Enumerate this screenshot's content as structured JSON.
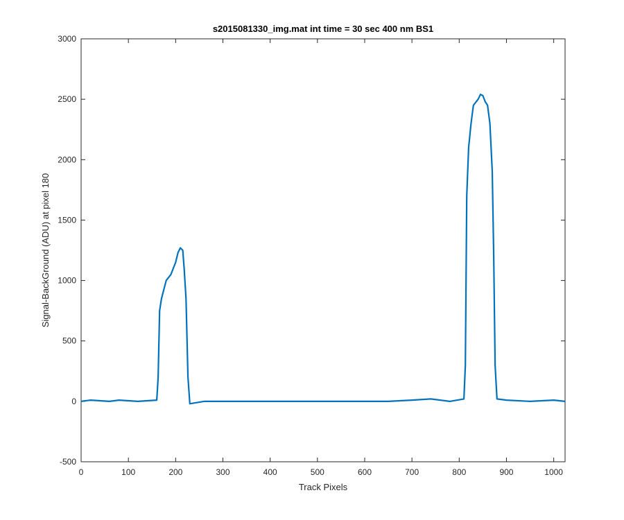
{
  "chart_data": {
    "type": "line",
    "title": "s2015081330_img.mat int time = 30 sec  400 nm BS1",
    "xlabel": "Track Pixels",
    "ylabel": "Signal-BackGround (ADU) at pixel 180",
    "xlim": [
      0,
      1024
    ],
    "ylim": [
      -500,
      3000
    ],
    "xticks": [
      0,
      100,
      200,
      300,
      400,
      500,
      600,
      700,
      800,
      900,
      1000
    ],
    "yticks": [
      -500,
      0,
      500,
      1000,
      1500,
      2000,
      2500,
      3000
    ],
    "x_tick_labels": [
      "0",
      "100",
      "200",
      "300",
      "400",
      "500",
      "600",
      "700",
      "800",
      "900",
      "1000"
    ],
    "y_tick_labels": [
      "-500",
      "0",
      "500",
      "1000",
      "1500",
      "2000",
      "2500",
      "3000"
    ],
    "grid": false,
    "color": "#0072BD",
    "series": [
      {
        "x": [
          0,
          20,
          40,
          60,
          80,
          100,
          120,
          140,
          160,
          163,
          166,
          170,
          180,
          190,
          200,
          205,
          210,
          215,
          218,
          222,
          226,
          230,
          260,
          300,
          350,
          400,
          450,
          500,
          550,
          600,
          650,
          700,
          740,
          780,
          810,
          813,
          816,
          820,
          825,
          830,
          840,
          845,
          850,
          855,
          860,
          865,
          870,
          873,
          876,
          880,
          900,
          950,
          1000,
          1024
        ],
        "y": [
          0,
          10,
          5,
          0,
          10,
          5,
          0,
          5,
          10,
          200,
          750,
          850,
          1000,
          1050,
          1150,
          1230,
          1270,
          1250,
          1100,
          850,
          200,
          -20,
          0,
          0,
          0,
          0,
          0,
          0,
          0,
          0,
          0,
          10,
          20,
          0,
          20,
          300,
          1700,
          2100,
          2300,
          2450,
          2500,
          2540,
          2530,
          2480,
          2450,
          2300,
          1900,
          1200,
          300,
          20,
          10,
          0,
          10,
          0
        ]
      }
    ]
  }
}
